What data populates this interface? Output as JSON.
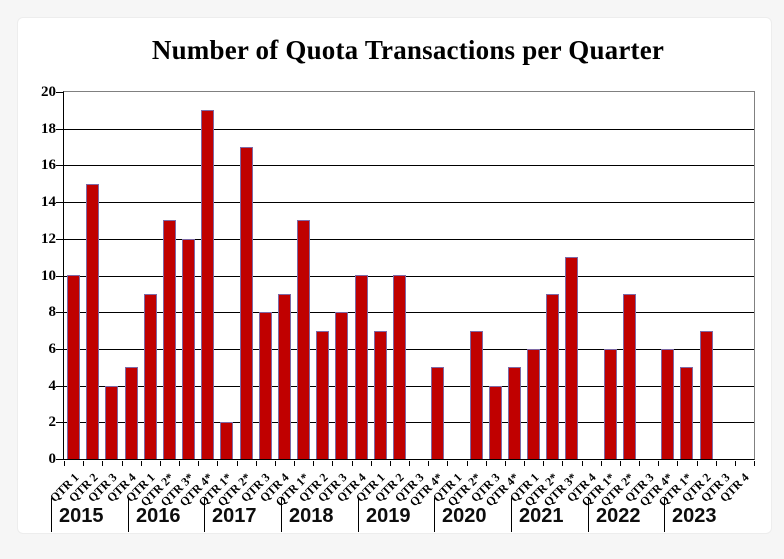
{
  "chart_data": {
    "type": "bar",
    "title": "Number of Quota Transactions per Quarter",
    "xlabel": "",
    "ylabel": "",
    "ylim": [
      0,
      20
    ],
    "ytick_interval": 2,
    "y_tick_labels": [
      "0",
      "2",
      "4",
      "6",
      "8",
      "10",
      "12",
      "14",
      "16",
      "18",
      "20"
    ],
    "grid": true,
    "legend": false,
    "colors": {
      "bar_fill": "#C00000",
      "bar_border": "#7E69A5",
      "gridline": "#000000",
      "plot_border": "#808080",
      "axis": "#000000"
    },
    "groups": [
      {
        "year": "2015",
        "quarters": [
          "QTR 1",
          "QTR 2",
          "QTR 3",
          "QTR 4"
        ],
        "values": [
          10,
          15,
          4,
          5
        ]
      },
      {
        "year": "2016",
        "quarters": [
          "QTR 1",
          "QTR 2*",
          "QTR 3*",
          "QTR 4*"
        ],
        "values": [
          9,
          13,
          12,
          19
        ]
      },
      {
        "year": "2017",
        "quarters": [
          "QTR 1*",
          "QTR 2*",
          "QTR 3",
          "QTR 4"
        ],
        "values": [
          2,
          17,
          8,
          9
        ]
      },
      {
        "year": "2018",
        "quarters": [
          "QTR 1*",
          "QTR 2",
          "QTR 3",
          "QTR 4"
        ],
        "values": [
          13,
          7,
          8,
          10
        ]
      },
      {
        "year": "2019",
        "quarters": [
          "QTR 1",
          "QTR 2",
          "QTR 3",
          "QTR 4*"
        ],
        "values": [
          7,
          10,
          0,
          5
        ]
      },
      {
        "year": "2020",
        "quarters": [
          "QTR 1",
          "QTR 2*",
          "QTR 3",
          "QTR 4*"
        ],
        "values": [
          0,
          7,
          4,
          5
        ]
      },
      {
        "year": "2021",
        "quarters": [
          "QTR 1",
          "QTR 2*",
          "QTR 3*",
          "QTR 4"
        ],
        "values": [
          6,
          9,
          11,
          0
        ]
      },
      {
        "year": "2022",
        "quarters": [
          "QTR 1*",
          "QTR 2*",
          "QTR 3",
          "QTR 4*"
        ],
        "values": [
          6,
          9,
          0,
          6
        ]
      },
      {
        "year": "2023",
        "quarters": [
          "QTR 1*",
          "QTR 2",
          "QTR 3",
          "QTR 4"
        ],
        "values": [
          5,
          7,
          0,
          0
        ]
      }
    ]
  }
}
